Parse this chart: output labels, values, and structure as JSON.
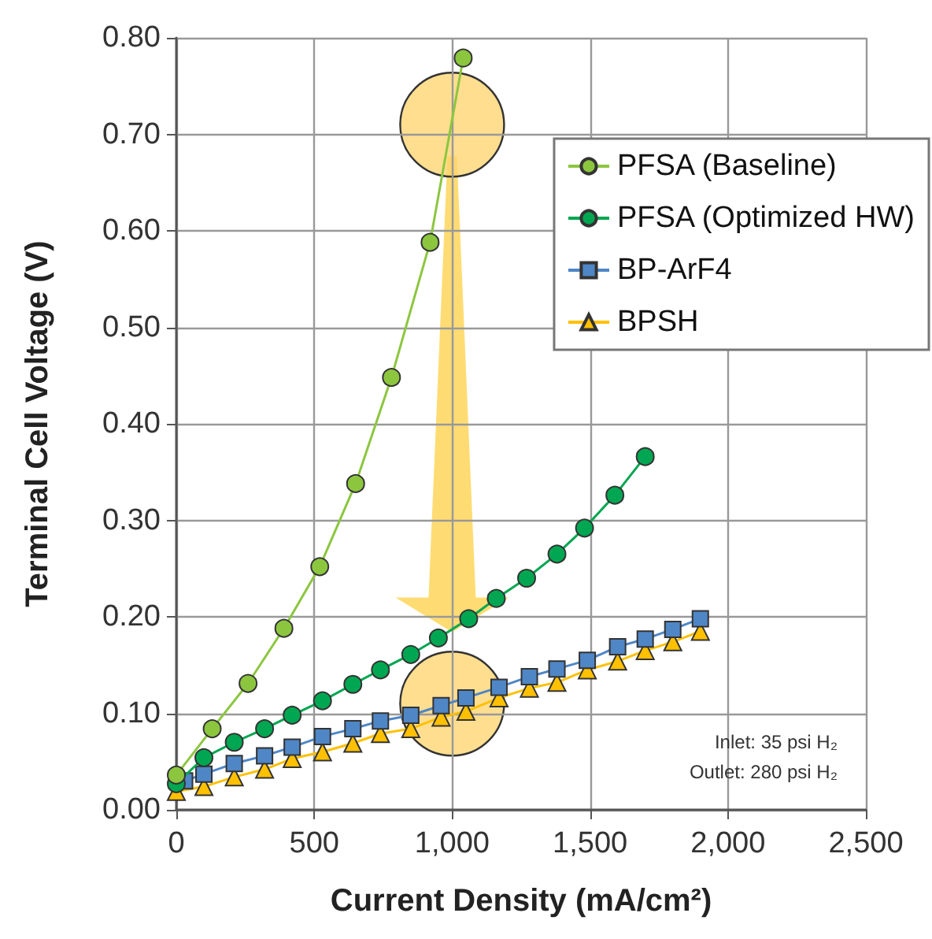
{
  "chart_data": {
    "type": "line",
    "xlabel": "Current Density (mA/cm²)",
    "ylabel": "Terminal Cell Voltage (V)",
    "xlim": [
      0,
      2500
    ],
    "ylim": [
      0,
      0.8
    ],
    "xticks": [
      0,
      500,
      {
        "value": 1000,
        "label": "1,000"
      },
      {
        "value": 1500,
        "label": "1,500"
      },
      {
        "value": 2000,
        "label": "2,000"
      },
      {
        "value": 2500,
        "label": "2,500"
      }
    ],
    "yticks": [
      {
        "value": 0,
        "label": "0.00"
      },
      {
        "value": 0.1,
        "label": "0.10"
      },
      {
        "value": 0.2,
        "label": "0.20"
      },
      {
        "value": 0.3,
        "label": "0.30"
      },
      {
        "value": 0.4,
        "label": "0.40"
      },
      {
        "value": 0.5,
        "label": "0.50"
      },
      {
        "value": 0.6,
        "label": "0.60"
      },
      {
        "value": 0.7,
        "label": "0.70"
      },
      {
        "value": 0.8,
        "label": "0.80"
      }
    ],
    "grid": true,
    "legend": "top right",
    "annotations": [
      "Inlet: 35 psi H₂",
      "Outlet: 280 psi H₂"
    ],
    "series": [
      {
        "name": "PFSA (Baseline)",
        "color": "#8cc63f",
        "marker": "circle",
        "x": [
          0,
          130,
          260,
          390,
          520,
          650,
          780,
          920,
          1040
        ],
        "values": [
          0.036,
          0.084,
          0.131,
          0.188,
          0.252,
          0.338,
          0.448,
          0.588,
          0.779
        ]
      },
      {
        "name": "PFSA (Optimized HW)",
        "color": "#00a651",
        "marker": "circle",
        "x": [
          0,
          100,
          210,
          320,
          420,
          530,
          640,
          740,
          850,
          950,
          1060,
          1160,
          1270,
          1380,
          1480,
          1590,
          1700
        ],
        "values": [
          0.027,
          0.054,
          0.07,
          0.084,
          0.098,
          0.113,
          0.13,
          0.145,
          0.161,
          0.178,
          0.198,
          0.219,
          0.24,
          0.265,
          0.292,
          0.326,
          0.366
        ]
      },
      {
        "name": "BP-ArF4",
        "color": "#4f86c6",
        "marker": "square",
        "x": [
          30,
          100,
          210,
          320,
          420,
          530,
          640,
          740,
          850,
          960,
          1050,
          1170,
          1280,
          1380,
          1490,
          1600,
          1700,
          1800,
          1900
        ],
        "values": [
          0.03,
          0.037,
          0.048,
          0.056,
          0.065,
          0.076,
          0.084,
          0.092,
          0.098,
          0.108,
          0.116,
          0.127,
          0.138,
          0.146,
          0.155,
          0.169,
          0.177,
          0.187,
          0.198
        ]
      },
      {
        "name": "BPSH",
        "color": "#ffc000",
        "marker": "triangle",
        "x": [
          0,
          100,
          210,
          320,
          420,
          530,
          640,
          740,
          850,
          960,
          1050,
          1170,
          1280,
          1380,
          1490,
          1600,
          1700,
          1800,
          1900
        ],
        "values": [
          0.019,
          0.024,
          0.034,
          0.042,
          0.053,
          0.06,
          0.069,
          0.079,
          0.084,
          0.096,
          0.102,
          0.116,
          0.126,
          0.132,
          0.145,
          0.154,
          0.165,
          0.174,
          0.185
        ]
      }
    ]
  }
}
